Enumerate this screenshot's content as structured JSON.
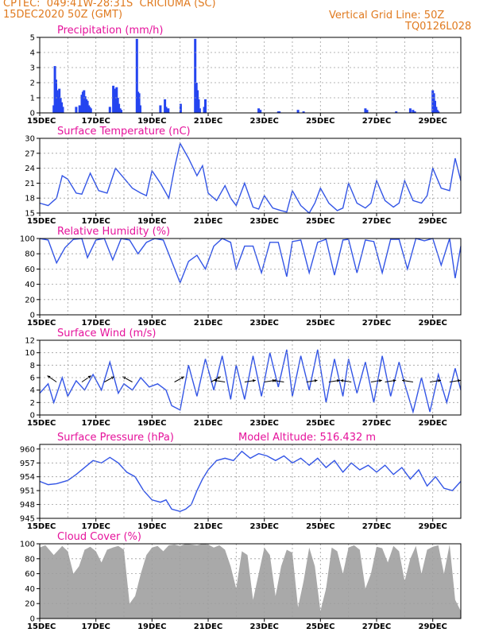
{
  "header": {
    "line1": "CPTEC:  049:41W-28:31S  CRICIUMA (SC)",
    "line2": "15DEC2020 50Z (GMT)",
    "grid_note": "Vertical Grid Line: 50Z",
    "product_code": "TQ0126L028",
    "model_altitude": "Model Altitude: 516.432  m"
  },
  "colors": {
    "header": "#e07a1f",
    "title": "#e5129b",
    "bar": "#2545f0",
    "line": "#3355e6",
    "cloud": "#a9a9a9",
    "grid": "#9e9e9e"
  },
  "chart_data": [
    {
      "type": "bar",
      "title": "Precipitation (mm/h)",
      "xlim": [
        0,
        15
      ],
      "x_ticks": [
        "15DEC",
        "17DEC",
        "19DEC",
        "21DEC",
        "23DEC",
        "25DEC",
        "27DEC",
        "29DEC"
      ],
      "ylim": [
        0,
        5
      ],
      "y_ticks": [
        0,
        1,
        2,
        3,
        4,
        5
      ],
      "x": [
        0.5,
        0.54,
        0.58,
        0.62,
        0.66,
        0.7,
        0.74,
        0.78,
        0.82,
        1.3,
        1.42,
        1.5,
        1.54,
        1.58,
        1.62,
        1.66,
        1.7,
        1.74,
        1.78,
        1.82,
        2.5,
        2.62,
        2.66,
        2.7,
        2.74,
        2.78,
        2.82,
        2.86,
        2.9,
        3.46,
        3.5,
        3.54,
        3.58,
        4.3,
        4.46,
        4.5,
        4.58,
        5.02,
        5.54,
        5.58,
        5.62,
        5.66,
        5.7,
        5.86,
        5.9,
        7.8,
        7.86,
        8.5,
        8.54,
        9.2,
        9.4,
        11.6,
        11.66,
        12.7,
        13.2,
        13.3,
        13.36,
        14.0,
        14.04,
        14.08,
        14.12,
        14.16,
        14.2
      ],
      "y": [
        0.5,
        3.1,
        2.2,
        1.5,
        1.1,
        1.6,
        1.0,
        0.7,
        0.4,
        0.4,
        0.5,
        1.2,
        1.4,
        1.5,
        1.1,
        0.9,
        0.8,
        0.5,
        0.4,
        0.3,
        0.4,
        1.8,
        1.6,
        1.3,
        1.7,
        1.0,
        0.6,
        0.3,
        0.2,
        4.9,
        1.4,
        1.3,
        0.5,
        0.5,
        0.9,
        0.4,
        0.3,
        0.6,
        4.9,
        2.0,
        1.5,
        0.9,
        0.3,
        0.4,
        0.9,
        0.3,
        0.2,
        0.1,
        0.1,
        0.2,
        0.1,
        0.3,
        0.2,
        0.1,
        0.3,
        0.2,
        0.1,
        1.5,
        1.3,
        0.8,
        0.4,
        0.2,
        0.1
      ]
    },
    {
      "type": "line",
      "title": "Surface Temperature (nC)",
      "xlim": [
        0,
        15
      ],
      "x_ticks": [
        "15DEC",
        "17DEC",
        "19DEC",
        "21DEC",
        "23DEC",
        "25DEC",
        "27DEC",
        "29DEC"
      ],
      "ylim": [
        15,
        30
      ],
      "y_ticks": [
        15,
        18,
        21,
        24,
        27,
        30
      ],
      "x": [
        0,
        0.3,
        0.6,
        0.8,
        1.0,
        1.3,
        1.5,
        1.8,
        2.1,
        2.4,
        2.7,
        3.0,
        3.3,
        3.6,
        3.8,
        4.0,
        4.3,
        4.6,
        4.8,
        5.0,
        5.3,
        5.6,
        5.8,
        6.0,
        6.3,
        6.6,
        6.8,
        7.0,
        7.3,
        7.6,
        7.8,
        8.0,
        8.3,
        8.6,
        8.8,
        9.0,
        9.3,
        9.6,
        9.8,
        10.0,
        10.3,
        10.6,
        10.8,
        11.0,
        11.3,
        11.6,
        11.8,
        12.0,
        12.3,
        12.6,
        12.8,
        13.0,
        13.3,
        13.6,
        13.8,
        14.0,
        14.3,
        14.6,
        14.8,
        15.0
      ],
      "y": [
        17.0,
        16.5,
        18.0,
        22.5,
        21.8,
        19.0,
        18.8,
        23.0,
        19.5,
        19.0,
        24.0,
        22.0,
        20.0,
        19.0,
        18.5,
        23.5,
        21.0,
        18.0,
        24.0,
        29.0,
        26.0,
        22.5,
        24.5,
        19.0,
        17.5,
        20.5,
        18.0,
        16.5,
        21.0,
        16.2,
        15.8,
        18.5,
        16.0,
        15.5,
        15.2,
        19.5,
        16.5,
        15.0,
        17.0,
        20.0,
        17.0,
        15.5,
        16.0,
        21.0,
        17.0,
        16.0,
        17.0,
        21.5,
        17.5,
        16.2,
        17.0,
        21.5,
        17.5,
        17.0,
        18.5,
        24.0,
        20.0,
        19.5,
        26.0,
        21.5
      ]
    },
    {
      "type": "line",
      "title": "Relative Humidity (%)",
      "xlim": [
        0,
        15
      ],
      "x_ticks": [
        "15DEC",
        "17DEC",
        "19DEC",
        "21DEC",
        "23DEC",
        "25DEC",
        "27DEC",
        "29DEC"
      ],
      "ylim": [
        0,
        100
      ],
      "y_ticks": [
        0,
        20,
        40,
        60,
        80,
        100
      ],
      "x": [
        0,
        0.3,
        0.6,
        0.9,
        1.2,
        1.5,
        1.7,
        2.0,
        2.3,
        2.6,
        2.9,
        3.2,
        3.5,
        3.8,
        4.1,
        4.4,
        4.7,
        5.0,
        5.3,
        5.6,
        5.9,
        6.2,
        6.5,
        6.8,
        7.0,
        7.3,
        7.6,
        7.9,
        8.2,
        8.5,
        8.8,
        9.0,
        9.3,
        9.6,
        9.9,
        10.2,
        10.5,
        10.8,
        11.0,
        11.3,
        11.6,
        11.9,
        12.2,
        12.5,
        12.8,
        13.1,
        13.4,
        13.7,
        14.0,
        14.3,
        14.6,
        14.8,
        15.0
      ],
      "y": [
        100,
        98,
        68,
        88,
        99,
        100,
        75,
        98,
        100,
        72,
        100,
        98,
        80,
        95,
        100,
        98,
        70,
        42,
        70,
        78,
        60,
        90,
        100,
        95,
        60,
        90,
        90,
        55,
        95,
        95,
        50,
        96,
        98,
        55,
        95,
        99,
        52,
        98,
        99,
        55,
        98,
        96,
        55,
        99,
        99,
        60,
        100,
        97,
        100,
        65,
        100,
        48,
        90
      ]
    },
    {
      "type": "line",
      "title": "Surface Wind (m/s)",
      "xlim": [
        0,
        15
      ],
      "x_ticks": [
        "15DEC",
        "17DEC",
        "19DEC",
        "21DEC",
        "23DEC",
        "25DEC",
        "27DEC",
        "29DEC"
      ],
      "ylim": [
        0,
        12
      ],
      "y_ticks": [
        0,
        2,
        4,
        6,
        8,
        10,
        12
      ],
      "x": [
        0,
        0.3,
        0.5,
        0.8,
        1.0,
        1.3,
        1.6,
        1.9,
        2.2,
        2.5,
        2.8,
        3.0,
        3.3,
        3.6,
        3.9,
        4.2,
        4.5,
        4.7,
        5.0,
        5.3,
        5.6,
        5.9,
        6.2,
        6.5,
        6.8,
        7.0,
        7.3,
        7.6,
        7.9,
        8.2,
        8.5,
        8.8,
        9.0,
        9.3,
        9.6,
        9.9,
        10.2,
        10.5,
        10.8,
        11.0,
        11.3,
        11.6,
        11.9,
        12.2,
        12.5,
        12.8,
        13.0,
        13.3,
        13.6,
        13.9,
        14.2,
        14.5,
        14.8,
        15.0
      ],
      "y": [
        3.5,
        5.0,
        2.0,
        6.0,
        3.0,
        5.5,
        4.0,
        6.5,
        4.0,
        8.5,
        3.5,
        5.0,
        4.0,
        6.0,
        4.5,
        5.0,
        4.0,
        1.5,
        0.8,
        8.0,
        3.0,
        9.0,
        4.0,
        9.5,
        2.5,
        8.0,
        2.5,
        9.5,
        3.0,
        10.0,
        4.5,
        10.5,
        3.0,
        9.5,
        4.0,
        10.5,
        2.0,
        9.0,
        3.0,
        9.0,
        3.5,
        8.5,
        2.0,
        9.5,
        3.0,
        8.5,
        5.0,
        0.5,
        6.0,
        0.5,
        6.5,
        2.0,
        7.5,
        4.0
      ],
      "arrows_x": [
        0.6,
        1.5,
        2.3,
        3.3,
        4.8,
        6.1,
        6.6,
        7.3,
        8.0,
        8.7,
        9.5,
        10.3,
        11.1,
        11.8,
        12.3,
        13.3,
        13.9,
        14.6
      ]
    },
    {
      "type": "line",
      "title": "Surface Pressure (hPa)",
      "xlim": [
        0,
        15
      ],
      "x_ticks": [
        "15DEC",
        "17DEC",
        "19DEC",
        "21DEC",
        "23DEC",
        "25DEC",
        "27DEC",
        "29DEC"
      ],
      "ylim": [
        945,
        961
      ],
      "y_ticks": [
        945,
        948,
        951,
        954,
        957,
        960
      ],
      "x": [
        0,
        0.3,
        0.6,
        1.0,
        1.3,
        1.6,
        1.9,
        2.2,
        2.5,
        2.8,
        3.1,
        3.4,
        3.7,
        4.0,
        4.3,
        4.5,
        4.7,
        5.0,
        5.2,
        5.4,
        5.6,
        5.8,
        6.0,
        6.3,
        6.6,
        6.9,
        7.2,
        7.5,
        7.8,
        8.1,
        8.4,
        8.7,
        9.0,
        9.3,
        9.6,
        9.9,
        10.2,
        10.5,
        10.8,
        11.1,
        11.4,
        11.7,
        12.0,
        12.3,
        12.6,
        12.9,
        13.2,
        13.5,
        13.8,
        14.1,
        14.4,
        14.7,
        15.0
      ],
      "y": [
        953.0,
        952.3,
        952.5,
        953.2,
        954.5,
        956.0,
        957.5,
        957.0,
        958.2,
        957.0,
        955.0,
        954.0,
        951.0,
        949.0,
        948.5,
        949.0,
        947.0,
        946.5,
        947.0,
        948.0,
        951.0,
        953.5,
        955.5,
        957.5,
        958.0,
        957.5,
        959.5,
        958.0,
        959.0,
        958.5,
        957.5,
        958.5,
        957.0,
        958.0,
        956.5,
        958.0,
        956.0,
        957.5,
        955.0,
        957.0,
        955.5,
        956.5,
        955.0,
        956.5,
        954.5,
        956.0,
        953.5,
        955.5,
        952.0,
        954.0,
        951.5,
        951.0,
        953.0
      ]
    },
    {
      "type": "area",
      "title": "Cloud Cover (%)",
      "xlim": [
        0,
        15
      ],
      "x_ticks": [
        "15DEC",
        "17DEC",
        "19DEC",
        "21DEC",
        "23DEC",
        "25DEC",
        "27DEC",
        "29DEC"
      ],
      "ylim": [
        0,
        100
      ],
      "y_ticks": [
        0,
        20,
        40,
        60,
        80,
        100
      ],
      "x": [
        0,
        0.2,
        0.5,
        0.8,
        1.0,
        1.2,
        1.4,
        1.6,
        1.8,
        2.0,
        2.2,
        2.4,
        2.6,
        2.8,
        3.0,
        3.2,
        3.4,
        3.6,
        3.8,
        4.0,
        4.2,
        4.4,
        4.6,
        4.8,
        5.0,
        5.2,
        5.4,
        5.6,
        5.8,
        6.0,
        6.2,
        6.4,
        6.6,
        6.8,
        7.0,
        7.2,
        7.4,
        7.6,
        7.8,
        8.0,
        8.2,
        8.4,
        8.6,
        8.8,
        9.0,
        9.2,
        9.4,
        9.6,
        9.8,
        10.0,
        10.2,
        10.4,
        10.6,
        10.8,
        11.0,
        11.2,
        11.4,
        11.6,
        11.8,
        12.0,
        12.2,
        12.4,
        12.6,
        12.8,
        13.0,
        13.2,
        13.4,
        13.6,
        13.8,
        14.0,
        14.2,
        14.4,
        14.6,
        14.8,
        15.0
      ],
      "y": [
        95,
        98,
        85,
        97,
        90,
        60,
        70,
        92,
        96,
        90,
        75,
        92,
        95,
        97,
        92,
        20,
        30,
        60,
        85,
        95,
        97,
        90,
        98,
        99,
        97,
        100,
        99,
        98,
        100,
        99,
        95,
        98,
        92,
        70,
        40,
        90,
        85,
        25,
        60,
        95,
        85,
        30,
        70,
        92,
        88,
        15,
        50,
        95,
        70,
        10,
        40,
        95,
        90,
        60,
        95,
        98,
        92,
        40,
        60,
        96,
        94,
        75,
        97,
        90,
        50,
        80,
        97,
        60,
        92,
        96,
        98,
        60,
        99,
        25,
        10
      ]
    }
  ]
}
